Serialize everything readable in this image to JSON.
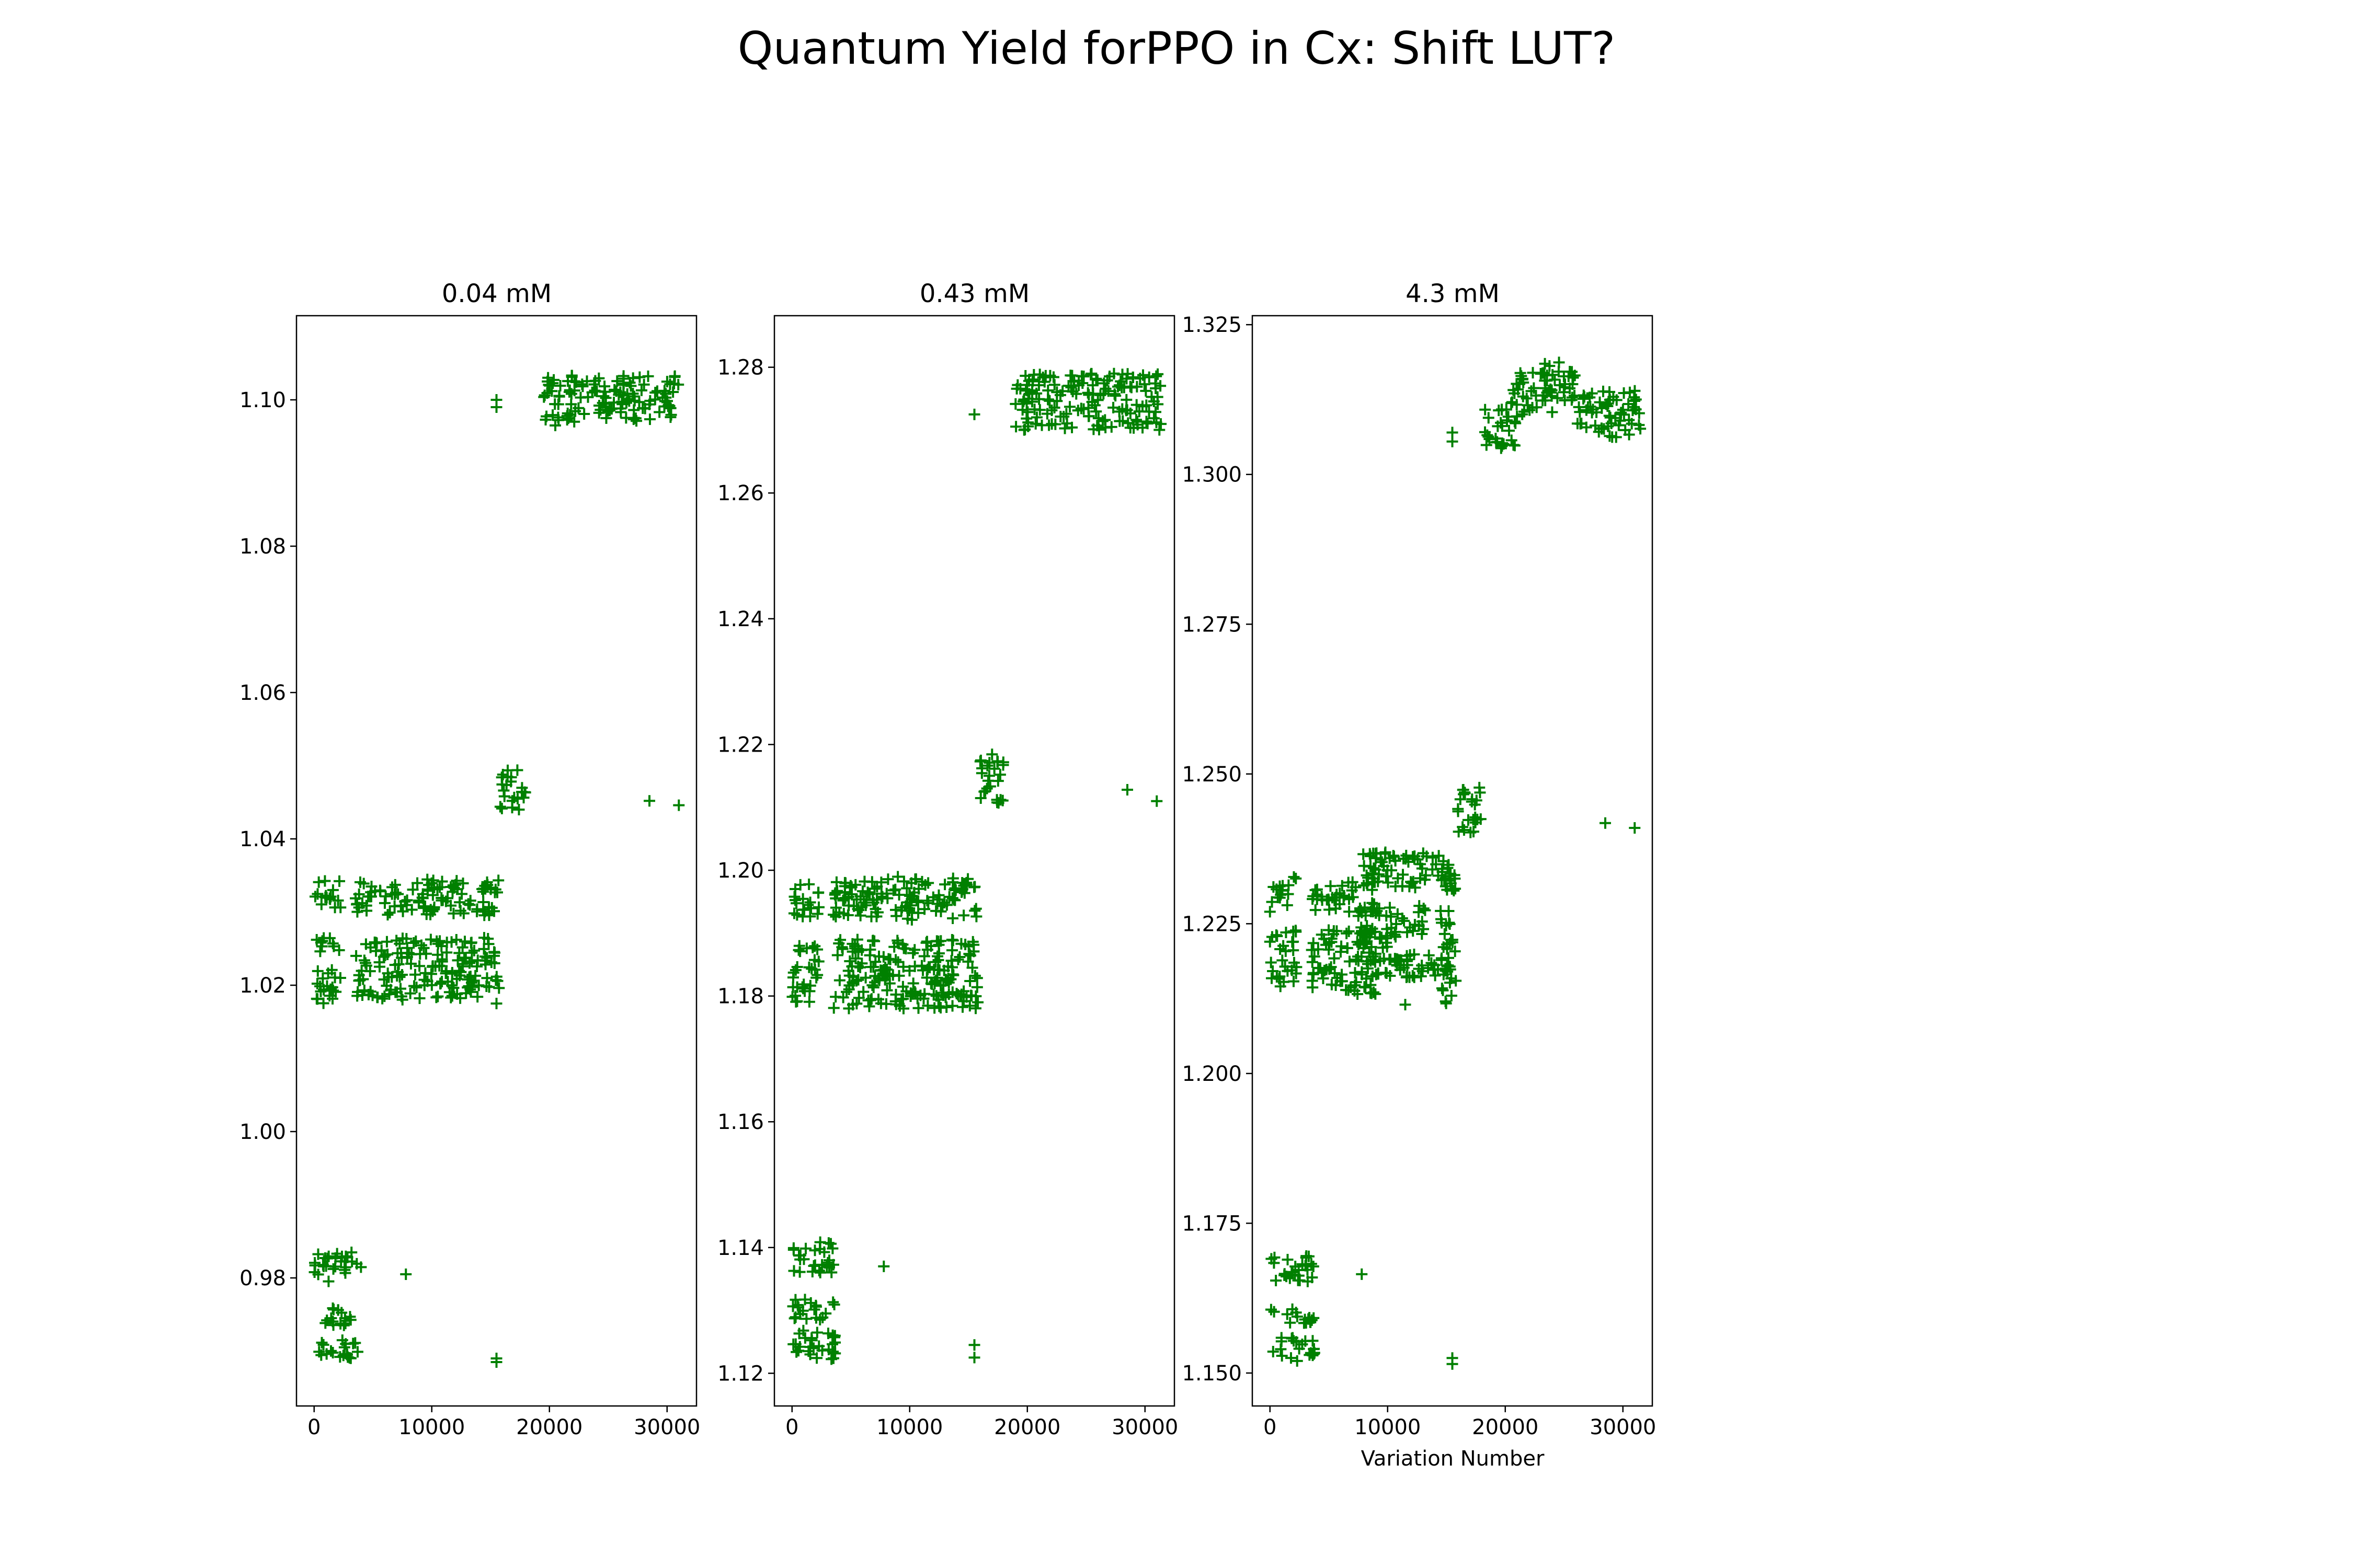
{
  "figure": {
    "suptitle": "Quantum Yield forPPO in Cx: Shift LUT?"
  },
  "chart_data": [
    {
      "type": "scatter",
      "title": "0.04 mM",
      "xlabel": "",
      "ylabel": "",
      "marker": "+",
      "color": "#008000",
      "xlim": [
        -1500,
        32500
      ],
      "ylim": [
        0.9625,
        1.1115
      ],
      "xticks": [
        0,
        10000,
        20000,
        30000
      ],
      "xticklabels": [
        "0",
        "10000",
        "20000",
        "30000"
      ],
      "yticks": [
        0.98,
        1.0,
        1.02,
        1.04,
        1.06,
        1.08,
        1.1
      ],
      "yticklabels": [
        "0.98",
        "1.00",
        "1.02",
        "1.04",
        "1.06",
        "1.08",
        "1.10"
      ],
      "clusters": [
        {
          "x": [
            0,
            3800
          ],
          "y": [
            0.9685,
            0.9715
          ]
        },
        {
          "x": [
            0,
            3800
          ],
          "y": [
            0.9735,
            0.976
          ]
        },
        {
          "x": [
            0,
            4000
          ],
          "y": [
            0.9795,
            0.9835
          ]
        },
        {
          "x": [
            0,
            2300
          ],
          "y": [
            1.0175,
            1.0225
          ]
        },
        {
          "x": [
            0,
            2300
          ],
          "y": [
            1.024,
            1.0265
          ]
        },
        {
          "x": [
            0,
            2300
          ],
          "y": [
            1.0305,
            1.0345
          ]
        },
        {
          "x": [
            3500,
            15800
          ],
          "y": [
            1.018,
            1.022
          ]
        },
        {
          "x": [
            3500,
            15800
          ],
          "y": [
            1.0225,
            1.0265
          ]
        },
        {
          "x": [
            3500,
            15800
          ],
          "y": [
            1.0295,
            1.0345
          ]
        },
        {
          "x": [
            15800,
            18000
          ],
          "y": [
            1.044,
            1.05
          ]
        },
        {
          "x": [
            19500,
            31000
          ],
          "y": [
            1.097,
            1.1035
          ]
        }
      ],
      "points": [
        {
          "x": 7800,
          "y": 0.9805
        },
        {
          "x": 15500,
          "y": 0.969
        },
        {
          "x": 15500,
          "y": 0.9685
        },
        {
          "x": 15500,
          "y": 1.0175
        },
        {
          "x": 15500,
          "y": 1.1
        },
        {
          "x": 15500,
          "y": 1.099
        },
        {
          "x": 20500,
          "y": 1.0965
        },
        {
          "x": 28500,
          "y": 1.0452
        },
        {
          "x": 31000,
          "y": 1.0446
        }
      ]
    },
    {
      "type": "scatter",
      "title": "0.43 mM",
      "xlabel": "",
      "ylabel": "",
      "marker": "+",
      "color": "#008000",
      "xlim": [
        -1500,
        32500
      ],
      "ylim": [
        1.1148,
        1.2882
      ],
      "xticks": [
        0,
        10000,
        20000,
        30000
      ],
      "xticklabels": [
        "0",
        "10000",
        "20000",
        "30000"
      ],
      "yticks": [
        1.12,
        1.14,
        1.16,
        1.18,
        1.2,
        1.22,
        1.24,
        1.26,
        1.28
      ],
      "yticklabels": [
        "1.12",
        "1.14",
        "1.16",
        "1.18",
        "1.20",
        "1.22",
        "1.24",
        "1.26",
        "1.28"
      ],
      "clusters": [
        {
          "x": [
            0,
            3800
          ],
          "y": [
            1.122,
            1.127
          ]
        },
        {
          "x": [
            0,
            3800
          ],
          "y": [
            1.1285,
            1.132
          ]
        },
        {
          "x": [
            0,
            3800
          ],
          "y": [
            1.136,
            1.141
          ]
        },
        {
          "x": [
            0,
            2300
          ],
          "y": [
            1.179,
            1.184
          ]
        },
        {
          "x": [
            0,
            2300
          ],
          "y": [
            1.184,
            1.188
          ]
        },
        {
          "x": [
            0,
            2300
          ],
          "y": [
            1.192,
            1.198
          ]
        },
        {
          "x": [
            3500,
            15800
          ],
          "y": [
            1.178,
            1.184
          ]
        },
        {
          "x": [
            3500,
            15800
          ],
          "y": [
            1.184,
            1.189
          ]
        },
        {
          "x": [
            3500,
            15800
          ],
          "y": [
            1.192,
            1.199
          ]
        },
        {
          "x": [
            15800,
            18000
          ],
          "y": [
            1.2105,
            1.2185
          ]
        },
        {
          "x": [
            19000,
            31500
          ],
          "y": [
            1.27,
            1.279
          ]
        }
      ],
      "points": [
        {
          "x": 7800,
          "y": 1.137
        },
        {
          "x": 15500,
          "y": 1.1245
        },
        {
          "x": 15500,
          "y": 1.1225
        },
        {
          "x": 15500,
          "y": 1.2725
        },
        {
          "x": 28500,
          "y": 1.2128
        },
        {
          "x": 31000,
          "y": 1.211
        }
      ]
    },
    {
      "type": "scatter",
      "title": "4.3 mM",
      "xlabel": "Variation Number",
      "ylabel": "",
      "marker": "+",
      "color": "#008000",
      "xlim": [
        -1500,
        32500
      ],
      "ylim": [
        1.1445,
        1.3265
      ],
      "xticks": [
        0,
        10000,
        20000,
        30000
      ],
      "xticklabels": [
        "0",
        "10000",
        "20000",
        "30000"
      ],
      "yticks": [
        1.15,
        1.175,
        1.2,
        1.225,
        1.25,
        1.275,
        1.3,
        1.325
      ],
      "yticklabels": [
        "1.150",
        "1.175",
        "1.200",
        "1.225",
        "1.250",
        "1.275",
        "1.300",
        "1.325"
      ],
      "clusters": [
        {
          "x": [
            0,
            3800
          ],
          "y": [
            1.152,
            1.156
          ]
        },
        {
          "x": [
            0,
            3800
          ],
          "y": [
            1.158,
            1.161
          ]
        },
        {
          "x": [
            0,
            3800
          ],
          "y": [
            1.165,
            1.17
          ]
        },
        {
          "x": [
            0,
            2300
          ],
          "y": [
            1.214,
            1.219
          ]
        },
        {
          "x": [
            0,
            2300
          ],
          "y": [
            1.22,
            1.224
          ]
        },
        {
          "x": [
            0,
            2300
          ],
          "y": [
            1.228,
            1.233
          ]
        },
        {
          "x": [
            3500,
            9000
          ],
          "y": [
            1.213,
            1.218
          ]
        },
        {
          "x": [
            3500,
            11000
          ],
          "y": [
            1.218,
            1.224
          ]
        },
        {
          "x": [
            3500,
            9000
          ],
          "y": [
            1.227,
            1.232
          ]
        },
        {
          "x": [
            7500,
            15500
          ],
          "y": [
            1.216,
            1.22
          ]
        },
        {
          "x": [
            7500,
            13500
          ],
          "y": [
            1.223,
            1.228
          ]
        },
        {
          "x": [
            7500,
            15500
          ],
          "y": [
            1.231,
            1.237
          ]
        },
        {
          "x": [
            14500,
            15800
          ],
          "y": [
            1.211,
            1.235
          ]
        },
        {
          "x": [
            15800,
            18000
          ],
          "y": [
            1.24,
            1.248
          ]
        },
        {
          "x": [
            18000,
            21000
          ],
          "y": [
            1.304,
            1.311
          ]
        },
        {
          "x": [
            20500,
            24000
          ],
          "y": [
            1.31,
            1.317
          ]
        },
        {
          "x": [
            23000,
            26000
          ],
          "y": [
            1.312,
            1.319
          ]
        },
        {
          "x": [
            26000,
            31500
          ],
          "y": [
            1.306,
            1.314
          ]
        }
      ],
      "points": [
        {
          "x": 0,
          "y": 1.227
        },
        {
          "x": 0,
          "y": 1.222
        },
        {
          "x": 7800,
          "y": 1.1665
        },
        {
          "x": 11500,
          "y": 1.2115
        },
        {
          "x": 15500,
          "y": 1.1525
        },
        {
          "x": 15500,
          "y": 1.1515
        },
        {
          "x": 15500,
          "y": 1.307
        },
        {
          "x": 15500,
          "y": 1.3055
        },
        {
          "x": 28500,
          "y": 1.2418
        },
        {
          "x": 31000,
          "y": 1.241
        }
      ]
    }
  ]
}
